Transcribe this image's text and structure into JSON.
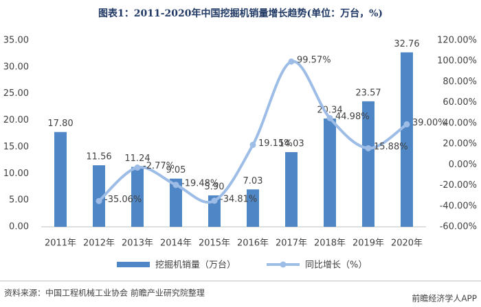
{
  "chart_data": {
    "type": "bar_line",
    "title": "图表1：2011-2020年中国挖掘机销量增长趋势(单位：万台，%)",
    "categories": [
      "2011年",
      "2012年",
      "2013年",
      "2014年",
      "2015年",
      "2016年",
      "2017年",
      "2018年",
      "2019年",
      "2020年"
    ],
    "series": [
      {
        "name": "挖掘机销量（万台）",
        "color": "#4f86c6",
        "axis": "y",
        "values": [
          17.8,
          11.56,
          11.24,
          9.05,
          5.9,
          7.03,
          14.03,
          20.34,
          23.57,
          32.76
        ],
        "value_labels": [
          "17.80",
          "11.56",
          "11.24",
          "9.05",
          "5.90",
          "7.03",
          "14.03",
          "20.34",
          "23.57",
          "32.76"
        ]
      },
      {
        "name": "同比增长（%）",
        "color": "#9dbde6",
        "axis": "y2",
        "values": [
          null,
          -35.06,
          -2.77,
          -19.48,
          -34.81,
          19.15,
          99.57,
          44.98,
          15.88,
          39.0
        ],
        "value_labels": [
          null,
          "-35.06%",
          "-2.77%",
          "-19.48%",
          "-34.81%",
          "19.15%",
          "99.57%",
          "44.98%",
          "15.88%",
          "39.00%"
        ]
      }
    ],
    "ylim": [
      0,
      35
    ],
    "yticks": [
      {
        "value": 0,
        "label": "0.00"
      },
      {
        "value": 5,
        "label": "5.00"
      },
      {
        "value": 10,
        "label": "10.00"
      },
      {
        "value": 15,
        "label": "15.00"
      },
      {
        "value": 20,
        "label": "20.00"
      },
      {
        "value": 25,
        "label": "25.00"
      },
      {
        "value": 30,
        "label": "30.00"
      },
      {
        "value": 35,
        "label": "35.00"
      }
    ],
    "y2lim": [
      -60,
      120
    ],
    "y2ticks": [
      {
        "value": -60,
        "label": "-60.00%"
      },
      {
        "value": -40,
        "label": "-40.00%"
      },
      {
        "value": -20,
        "label": "-20.00%"
      },
      {
        "value": 0,
        "label": "0.00%"
      },
      {
        "value": 20,
        "label": "20.00%"
      },
      {
        "value": 40,
        "label": "40.00%"
      },
      {
        "value": 60,
        "label": "60.00%"
      },
      {
        "value": 80,
        "label": "80.00%"
      },
      {
        "value": 100,
        "label": "100.00%"
      },
      {
        "value": 120,
        "label": "120.00%"
      }
    ],
    "source": "资料来源：中国工程机械工业协会 前瞻产业研究院整理",
    "brand": "前瞻经济学人APP"
  }
}
